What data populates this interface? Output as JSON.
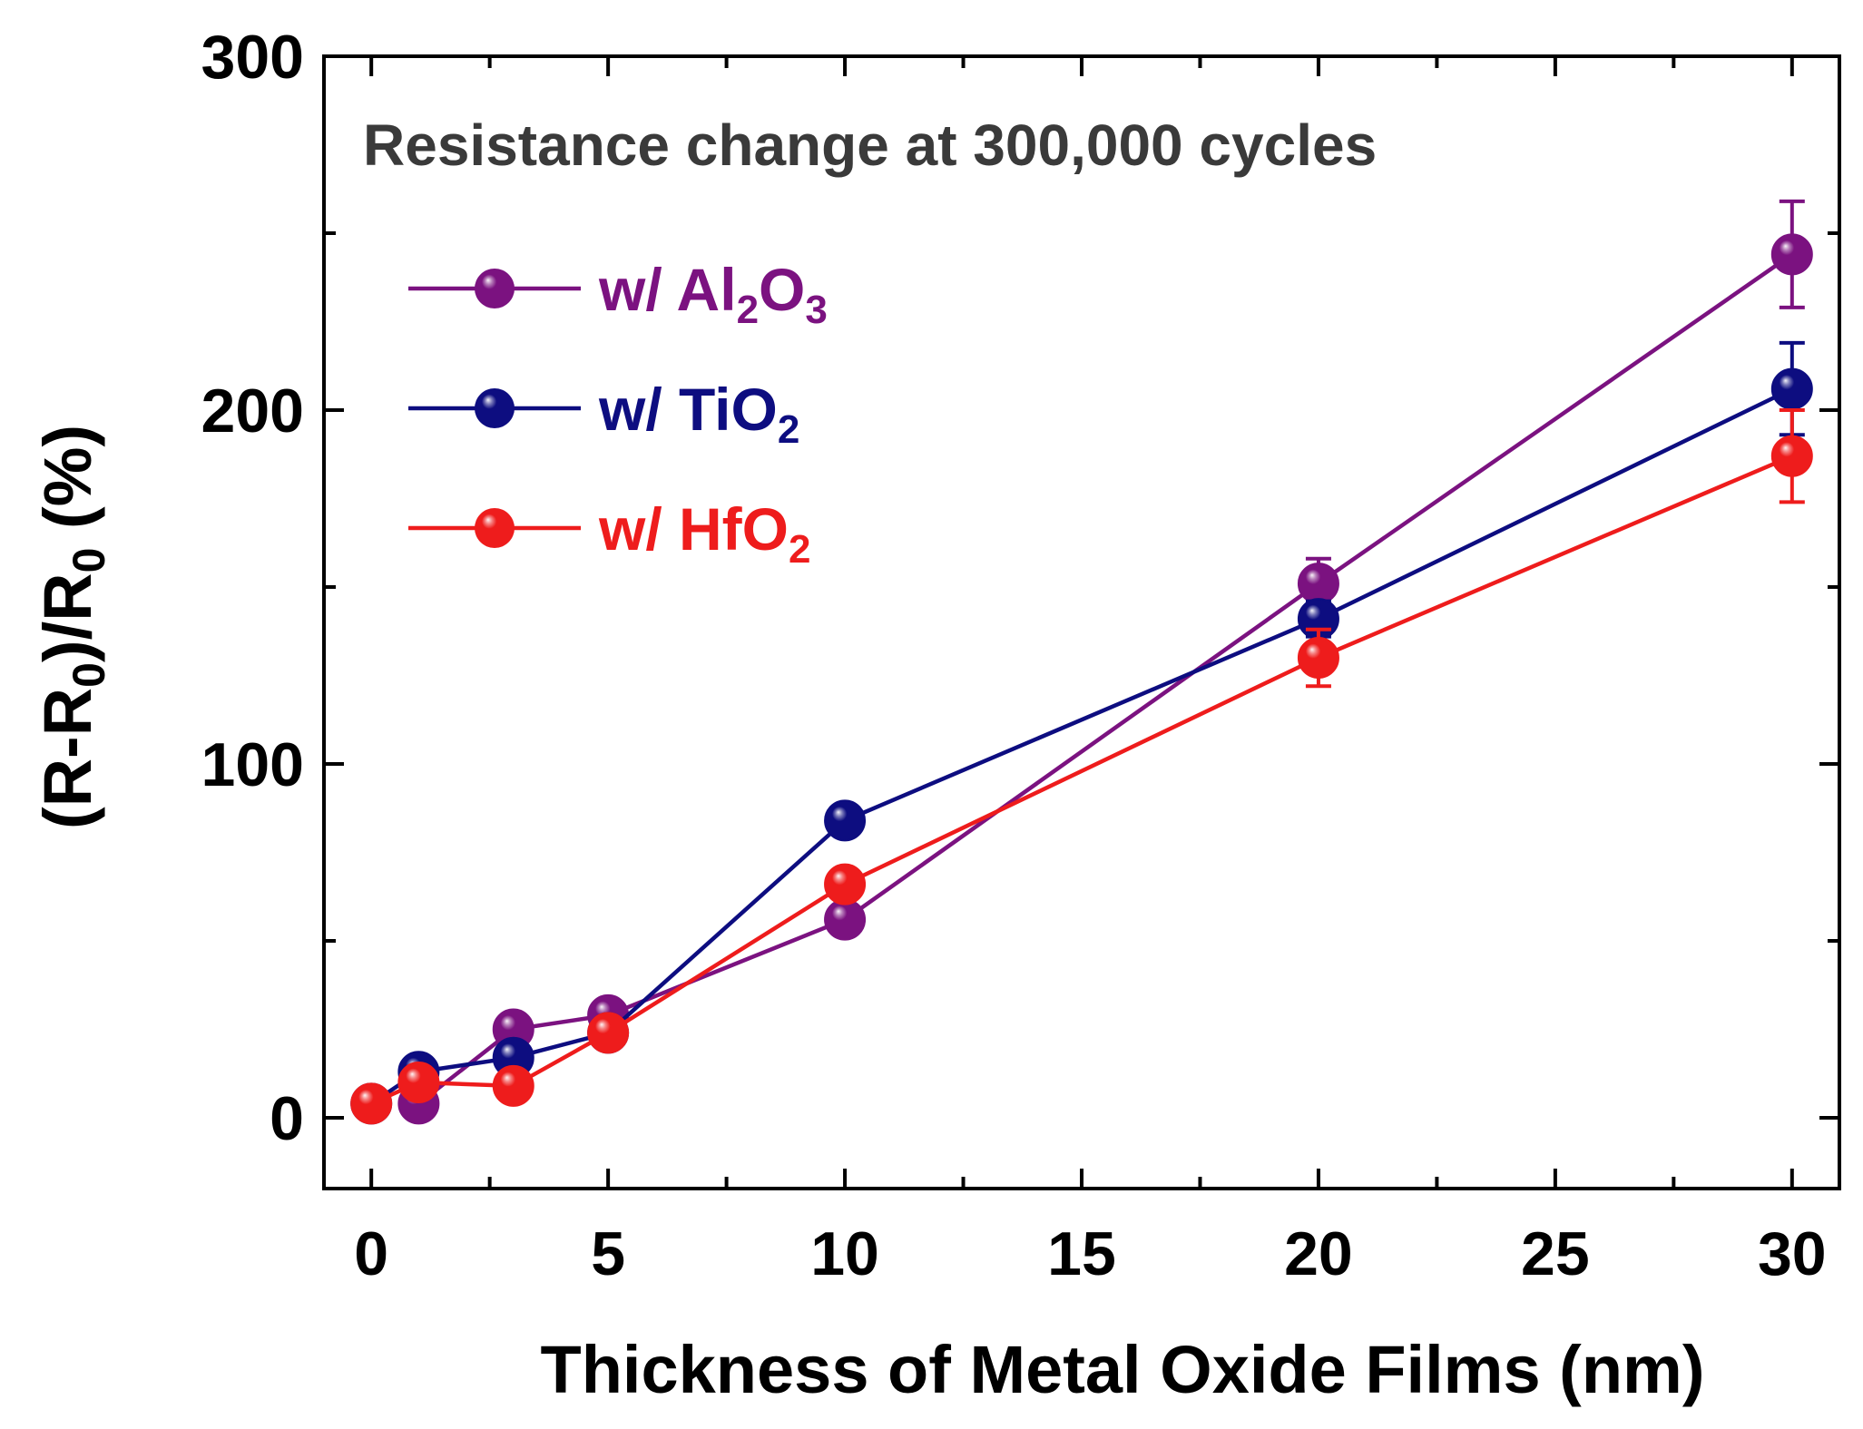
{
  "chart_data": {
    "type": "line",
    "annotation": "Resistance change at 300,000 cycles",
    "xlabel": "Thickness of Metal Oxide Films (nm)",
    "ylabel": {
      "parts": [
        {
          "t": "(R-R",
          "sub": false
        },
        {
          "t": "0",
          "sub": true
        },
        {
          "t": ")/R",
          "sub": false
        },
        {
          "t": "0",
          "sub": true
        },
        {
          "t": " (%)",
          "sub": false
        }
      ]
    },
    "xlim": [
      -1,
      31
    ],
    "ylim": [
      -20,
      300
    ],
    "xticks": [
      0,
      5,
      10,
      15,
      20,
      25,
      30
    ],
    "xtick_labels": [
      "0",
      "5",
      "10",
      "15",
      "20",
      "25",
      "30"
    ],
    "xminor": [
      2.5,
      7.5,
      12.5,
      17.5,
      22.5,
      27.5
    ],
    "yticks": [
      0,
      100,
      200,
      300
    ],
    "ytick_labels": [
      "0",
      "100",
      "200",
      "300"
    ],
    "yminor": [
      50,
      150,
      250
    ],
    "legend_position": "top-left",
    "series": [
      {
        "name": "w/ Al2O3",
        "label_parts": [
          {
            "t": "w/ Al",
            "sub": false
          },
          {
            "t": "2",
            "sub": true
          },
          {
            "t": "O",
            "sub": false
          },
          {
            "t": "3",
            "sub": true
          }
        ],
        "color": "#7b1280",
        "x": [
          1,
          3,
          5,
          10,
          20,
          30
        ],
        "y": [
          4,
          25,
          29,
          56,
          151,
          244
        ],
        "err": [
          3,
          3,
          3,
          3,
          7,
          15
        ]
      },
      {
        "name": "w/ TiO2",
        "label_parts": [
          {
            "t": "w/ TiO",
            "sub": false
          },
          {
            "t": "2",
            "sub": true
          }
        ],
        "color": "#0d0d80",
        "x": [
          0,
          1,
          3,
          5,
          10,
          20,
          30
        ],
        "y": [
          4,
          13,
          17,
          24,
          84,
          141,
          206
        ],
        "err": [
          3,
          3,
          3,
          3,
          3,
          5,
          13
        ]
      },
      {
        "name": "w/ HfO2",
        "label_parts": [
          {
            "t": "w/ HfO",
            "sub": false
          },
          {
            "t": "2",
            "sub": true
          }
        ],
        "color": "#ee1c1c",
        "x": [
          0,
          1,
          3,
          5,
          10,
          20,
          30
        ],
        "y": [
          4,
          10,
          9,
          24,
          66,
          130,
          187
        ],
        "err": [
          3,
          3,
          3,
          3,
          3,
          8,
          13
        ]
      }
    ]
  }
}
